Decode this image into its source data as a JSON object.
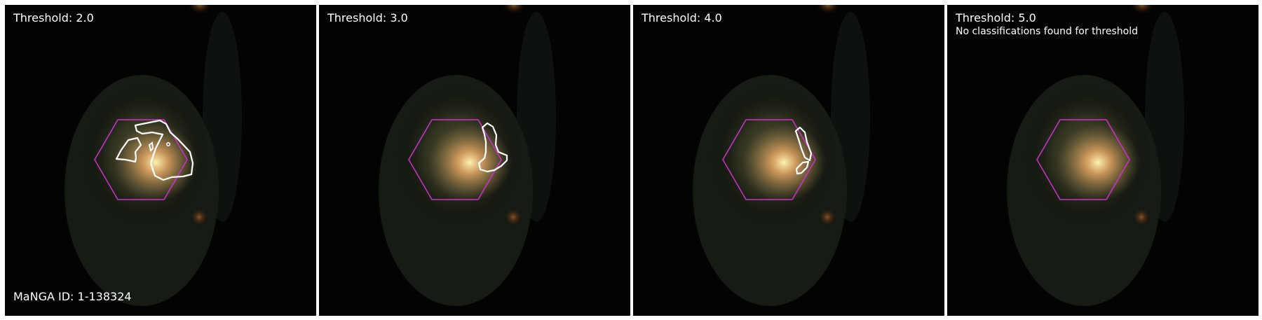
{
  "panels": [
    {
      "title": "Threshold: 2.0"
    },
    {
      "title": "Threshold: 3.0"
    },
    {
      "title": "Threshold: 4.0"
    },
    {
      "title": "Threshold: 5.0",
      "note": "No classifications found for threshold"
    }
  ],
  "manga_label": "MaNGA ID: 1-138324",
  "colors": {
    "hexagon": "#cc33cc",
    "contour": "#ffffff",
    "background": "#030303"
  }
}
